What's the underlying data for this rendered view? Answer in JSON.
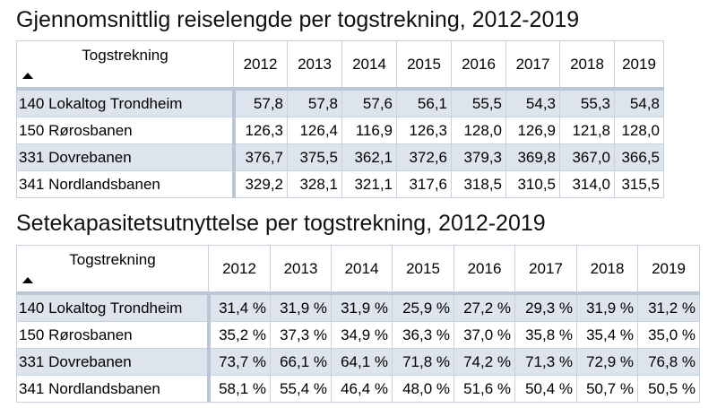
{
  "table1": {
    "title": "Gjennomsnittlig reiselengde per togstrekning, 2012-2019",
    "corner_label": "Togstrekning",
    "years": [
      "2012",
      "2013",
      "2014",
      "2015",
      "2016",
      "2017",
      "2018",
      "2019"
    ],
    "rows": [
      {
        "name": "140 Lokaltog Trondheim",
        "values": [
          "57,8",
          "57,8",
          "57,6",
          "56,1",
          "55,5",
          "54,3",
          "55,3",
          "54,8"
        ]
      },
      {
        "name": "150 Rørosbanen",
        "values": [
          "126,3",
          "126,4",
          "116,9",
          "126,3",
          "128,0",
          "126,9",
          "121,8",
          "128,0"
        ]
      },
      {
        "name": "331 Dovrebanen",
        "values": [
          "376,7",
          "375,5",
          "362,1",
          "372,6",
          "379,3",
          "369,8",
          "367,0",
          "366,5"
        ]
      },
      {
        "name": "341 Nordlandsbanen",
        "values": [
          "329,2",
          "328,1",
          "321,1",
          "317,6",
          "318,5",
          "310,5",
          "314,0",
          "315,5"
        ]
      }
    ]
  },
  "table2": {
    "title": "Setekapasitetsutnyttelse per togstrekning, 2012-2019",
    "corner_label": "Togstrekning",
    "years": [
      "2012",
      "2013",
      "2014",
      "2015",
      "2016",
      "2017",
      "2018",
      "2019"
    ],
    "rows": [
      {
        "name": "140 Lokaltog Trondheim",
        "values": [
          "31,4 %",
          "31,9 %",
          "31,9 %",
          "25,9 %",
          "27,2 %",
          "29,3 %",
          "31,9 %",
          "31,2 %"
        ]
      },
      {
        "name": "150 Rørosbanen",
        "values": [
          "35,2 %",
          "37,3 %",
          "34,9 %",
          "36,3 %",
          "37,0 %",
          "35,8 %",
          "35,4 %",
          "35,0 %"
        ]
      },
      {
        "name": "331 Dovrebanen",
        "values": [
          "73,7 %",
          "66,1 %",
          "64,1 %",
          "71,8 %",
          "74,2 %",
          "71,3 %",
          "72,9 %",
          "76,8 %"
        ]
      },
      {
        "name": "341 Nordlandsbanen",
        "values": [
          "58,1 %",
          "55,4 %",
          "46,4 %",
          "48,0 %",
          "51,6 %",
          "50,4 %",
          "50,7 %",
          "50,5 %"
        ]
      }
    ]
  },
  "icons": {
    "sort": "sort-ascending-icon"
  }
}
